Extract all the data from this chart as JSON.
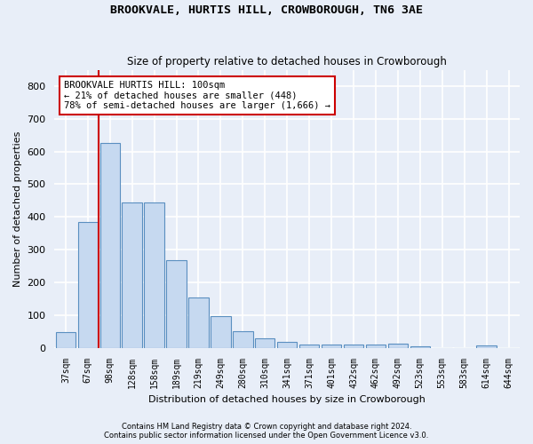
{
  "title1": "BROOKVALE, HURTIS HILL, CROWBOROUGH, TN6 3AE",
  "title2": "Size of property relative to detached houses in Crowborough",
  "xlabel": "Distribution of detached houses by size in Crowborough",
  "ylabel": "Number of detached properties",
  "categories": [
    "37sqm",
    "67sqm",
    "98sqm",
    "128sqm",
    "158sqm",
    "189sqm",
    "219sqm",
    "249sqm",
    "280sqm",
    "310sqm",
    "341sqm",
    "371sqm",
    "401sqm",
    "432sqm",
    "462sqm",
    "492sqm",
    "523sqm",
    "553sqm",
    "583sqm",
    "614sqm",
    "644sqm"
  ],
  "values": [
    47,
    385,
    625,
    443,
    443,
    268,
    155,
    98,
    52,
    28,
    18,
    10,
    10,
    10,
    10,
    13,
    5,
    0,
    0,
    8,
    0
  ],
  "bar_color": "#c6d9f0",
  "bar_edge_color": "#5a8fc0",
  "vline_x_index": 2,
  "vline_color": "#cc0000",
  "ylim": [
    0,
    850
  ],
  "yticks": [
    0,
    100,
    200,
    300,
    400,
    500,
    600,
    700,
    800
  ],
  "annotation_text": "BROOKVALE HURTIS HILL: 100sqm\n← 21% of detached houses are smaller (448)\n78% of semi-detached houses are larger (1,666) →",
  "annotation_box_color": "#ffffff",
  "annotation_box_edgecolor": "#cc0000",
  "footnote1": "Contains HM Land Registry data © Crown copyright and database right 2024.",
  "footnote2": "Contains public sector information licensed under the Open Government Licence v3.0.",
  "bg_color": "#e8eef8",
  "plot_bg_color": "#e8eef8",
  "grid_color": "#ffffff",
  "figsize": [
    6.0,
    5.0
  ],
  "dpi": 100
}
